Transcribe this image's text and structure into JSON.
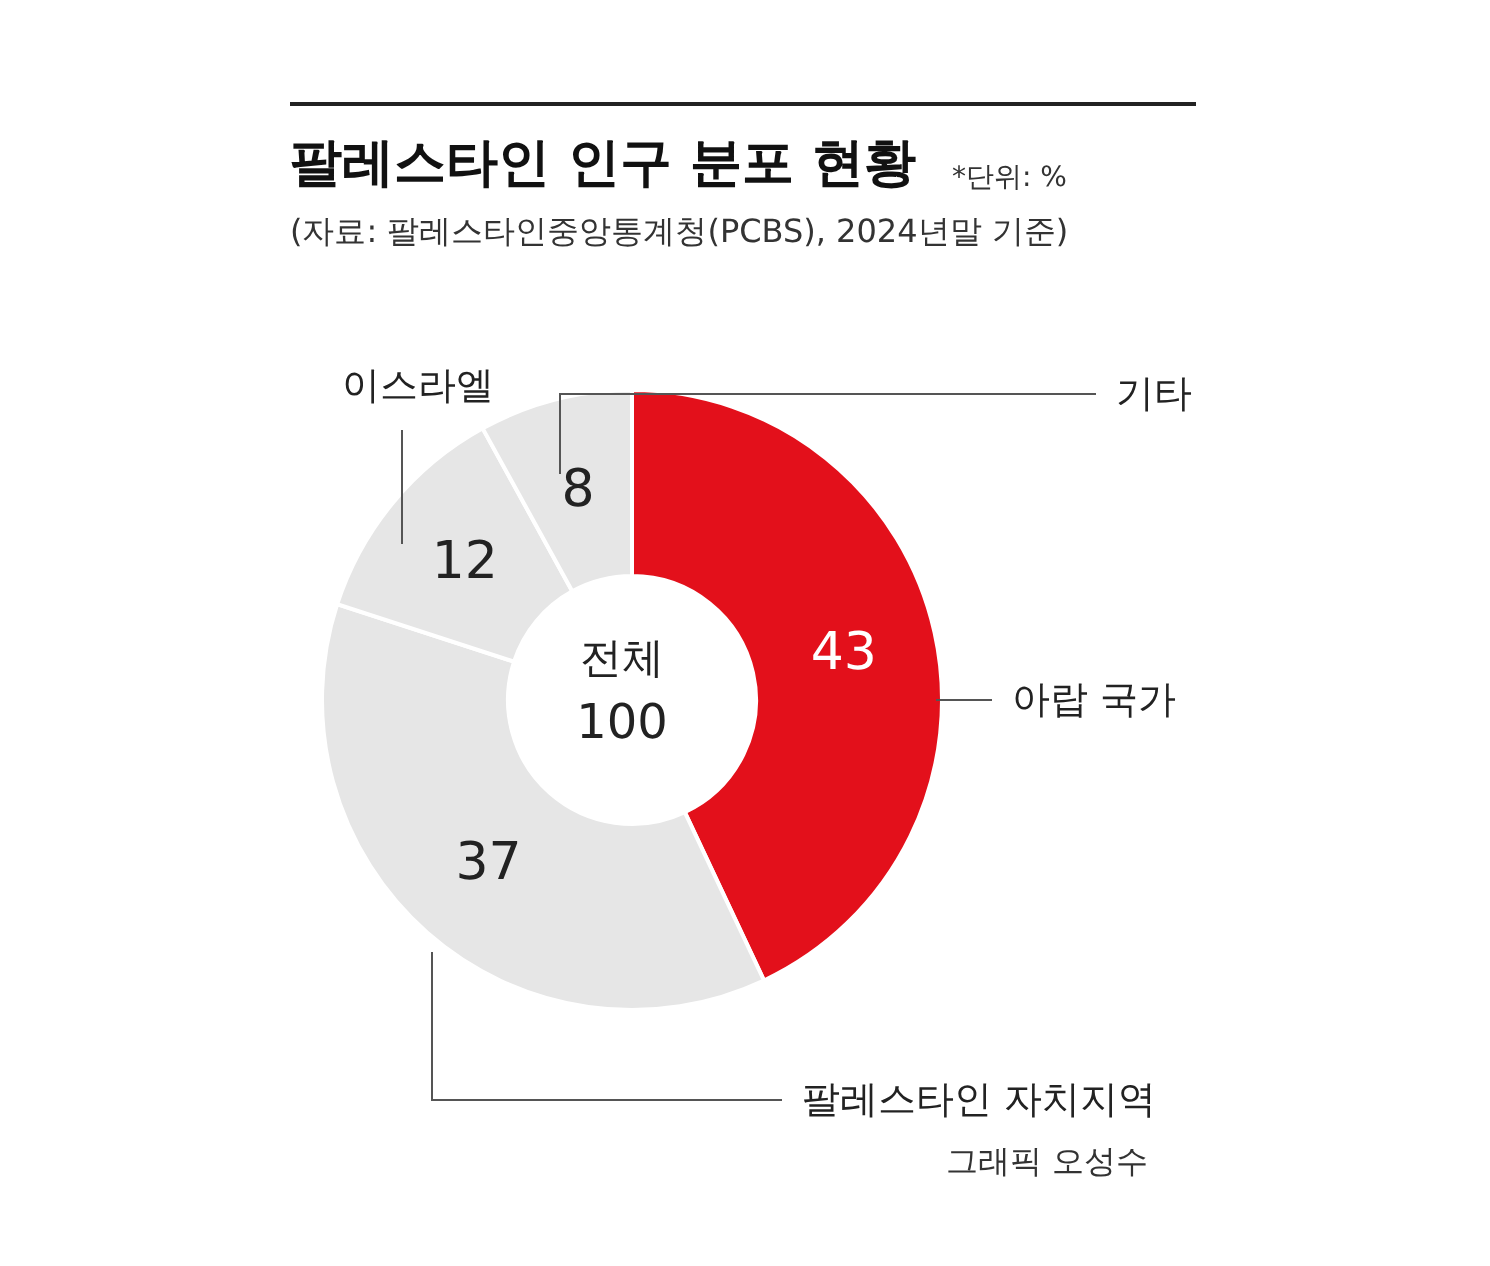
{
  "chart_data": {
    "type": "donut",
    "title": "팔레스타인 인구 분포 현황",
    "subtitle": "(자료: 팔레스타인중앙통계청(PCBS), 2024년말 기준)",
    "categories": [
      "아랍 국가",
      "팔레스타인 자치지역",
      "이스라엘",
      "기타"
    ],
    "values": [
      43,
      37,
      12,
      8
    ],
    "colors": [
      "#e3101b",
      "#e6e6e6",
      "#e6e6e6",
      "#e6e6e6"
    ],
    "data_labels": true,
    "annotations": [
      "*단위: %",
      "전체",
      "100",
      "그래픽 오성수"
    ]
  }
}
